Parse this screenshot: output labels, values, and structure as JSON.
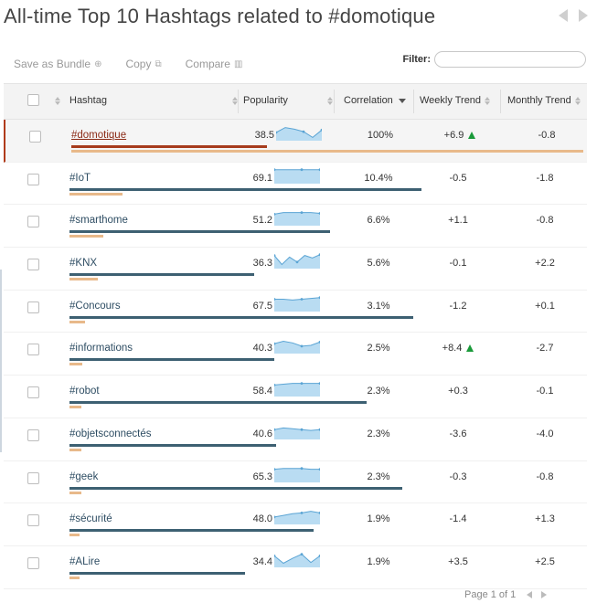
{
  "page": {
    "title": "All-time Top 10 Hashtags related to #domotique"
  },
  "toolbar": {
    "save": "Save as Bundle",
    "copy": "Copy",
    "compare": "Compare"
  },
  "filter": {
    "label": "Filter:",
    "value": ""
  },
  "columns": {
    "hashtag": "Hashtag",
    "popularity": "Popularity",
    "correlation": "Correlation",
    "weekly": "Weekly Trend",
    "monthly": "Monthly Trend"
  },
  "rows": [
    {
      "tag": "#domotique",
      "popularity": "38.5",
      "pop_value": 38.5,
      "correlation": "100%",
      "corr_value": 100,
      "weekly": "+6.9",
      "weekly_up": true,
      "monthly": "-0.8",
      "spark": [
        0.5,
        0.2,
        0.3,
        0.45,
        0.8,
        0.35
      ],
      "selected": true
    },
    {
      "tag": "#IoT",
      "popularity": "69.1",
      "pop_value": 69.1,
      "correlation": "10.4%",
      "corr_value": 10.4,
      "weekly": "-0.5",
      "weekly_up": false,
      "monthly": "-1.8",
      "spark": [
        0.15,
        0.15,
        0.15,
        0.15,
        0.15,
        0.15
      ]
    },
    {
      "tag": "#smarthome",
      "popularity": "51.2",
      "pop_value": 51.2,
      "correlation": "6.6%",
      "corr_value": 6.6,
      "weekly": "+1.1",
      "weekly_up": false,
      "monthly": "-0.8",
      "spark": [
        0.3,
        0.2,
        0.2,
        0.2,
        0.2,
        0.25
      ]
    },
    {
      "tag": "#KNX",
      "popularity": "36.3",
      "pop_value": 36.3,
      "correlation": "5.6%",
      "corr_value": 5.6,
      "weekly": "-0.1",
      "weekly_up": false,
      "monthly": "+2.2",
      "spark": [
        0.2,
        0.75,
        0.3,
        0.6,
        0.2,
        0.35,
        0.15
      ]
    },
    {
      "tag": "#Concours",
      "popularity": "67.5",
      "pop_value": 67.5,
      "correlation": "3.1%",
      "corr_value": 3.1,
      "weekly": "-1.2",
      "weekly_up": false,
      "monthly": "+0.1",
      "spark": [
        0.25,
        0.25,
        0.3,
        0.25,
        0.2,
        0.15
      ]
    },
    {
      "tag": "#informations",
      "popularity": "40.3",
      "pop_value": 40.3,
      "correlation": "2.5%",
      "corr_value": 2.5,
      "weekly": "+8.4",
      "weekly_up": true,
      "monthly": "-2.7",
      "spark": [
        0.4,
        0.25,
        0.35,
        0.55,
        0.5,
        0.3
      ]
    },
    {
      "tag": "#robot",
      "popularity": "58.4",
      "pop_value": 58.4,
      "correlation": "2.3%",
      "corr_value": 2.3,
      "weekly": "+0.3",
      "weekly_up": false,
      "monthly": "-0.1",
      "spark": [
        0.3,
        0.25,
        0.2,
        0.2,
        0.2,
        0.2
      ]
    },
    {
      "tag": "#objetsconnectés",
      "popularity": "40.6",
      "pop_value": 40.6,
      "correlation": "2.3%",
      "corr_value": 2.3,
      "weekly": "-3.6",
      "weekly_up": false,
      "monthly": "-4.0",
      "spark": [
        0.4,
        0.3,
        0.35,
        0.4,
        0.45,
        0.4
      ]
    },
    {
      "tag": "#geek",
      "popularity": "65.3",
      "pop_value": 65.3,
      "correlation": "2.3%",
      "corr_value": 2.3,
      "weekly": "-0.3",
      "weekly_up": false,
      "monthly": "-0.8",
      "spark": [
        0.2,
        0.15,
        0.15,
        0.15,
        0.2,
        0.2
      ]
    },
    {
      "tag": "#sécurité",
      "popularity": "48.0",
      "pop_value": 48.0,
      "correlation": "1.9%",
      "corr_value": 1.9,
      "weekly": "-1.4",
      "weekly_up": false,
      "monthly": "+1.3",
      "spark": [
        0.55,
        0.45,
        0.35,
        0.3,
        0.2,
        0.3
      ]
    },
    {
      "tag": "#ALire",
      "popularity": "34.4",
      "pop_value": 34.4,
      "correlation": "1.9%",
      "corr_value": 1.9,
      "weekly": "+3.5",
      "weekly_up": false,
      "monthly": "+2.5",
      "spark": [
        0.3,
        0.75,
        0.45,
        0.2,
        0.7,
        0.3
      ]
    }
  ],
  "pager": {
    "text": "Page 1 of 1"
  },
  "colors": {
    "accent": "#a63b1c",
    "bar": "#3d6072",
    "corr_bar": "#e8b98a",
    "spark_fill": "#b9dcf2",
    "spark_line": "#5aa4d4",
    "trend_up": "#1a9a3a"
  },
  "icons": {
    "save": "plus-circle-icon",
    "copy": "copy-icon",
    "compare": "chart-icon"
  }
}
